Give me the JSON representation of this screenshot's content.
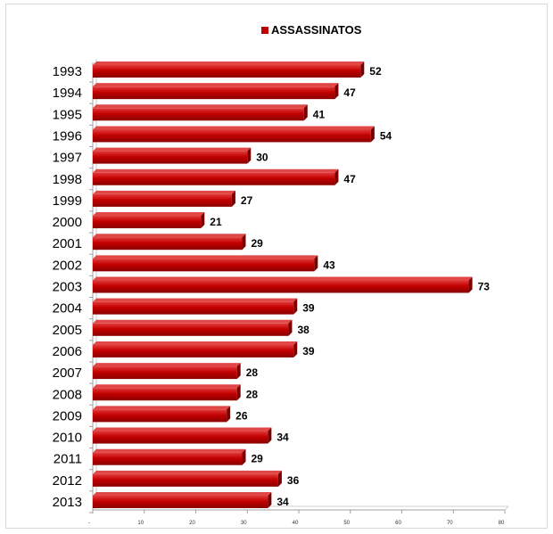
{
  "chart_data": {
    "type": "bar",
    "orientation": "horizontal",
    "title": "",
    "xlabel": "",
    "ylabel": "",
    "categories": [
      "1993",
      "1994",
      "1995",
      "1996",
      "1997",
      "1998",
      "1999",
      "2000",
      "2001",
      "2002",
      "2003",
      "2004",
      "2005",
      "2006",
      "2007",
      "2008",
      "2009",
      "2010",
      "2011",
      "2012",
      "2013"
    ],
    "series": [
      {
        "name": "ASSASSINATOS",
        "color": "#c00000",
        "values": [
          52,
          47,
          41,
          54,
          30,
          47,
          27,
          21,
          29,
          43,
          73,
          39,
          38,
          39,
          28,
          28,
          26,
          34,
          29,
          36,
          34
        ]
      }
    ],
    "xlim": [
      0,
      80
    ],
    "xticks": [
      "-",
      "10",
      "20",
      "30",
      "40",
      "50",
      "60",
      "70",
      "80"
    ],
    "legend": "top-center",
    "grid": false
  }
}
